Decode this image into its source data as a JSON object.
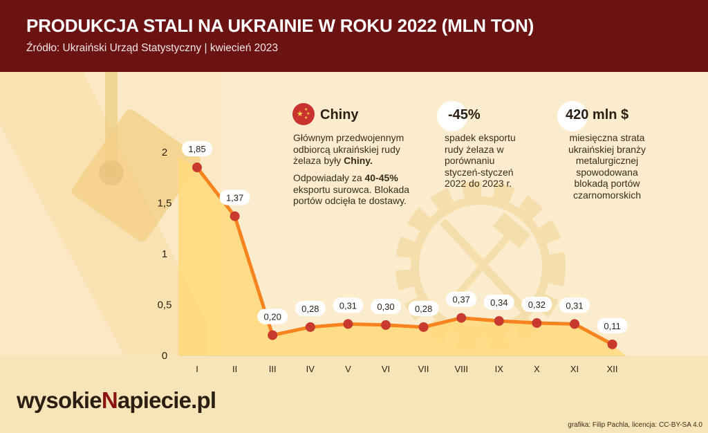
{
  "header": {
    "title": "PRODUKCJA STALI NA UKRAINIE W ROKU 2022 (MLN TON)",
    "subtitle": "Źródło:  Ukraiński Urząd Statystyczny | kwiecień 2023"
  },
  "info": {
    "china_title": "Chiny",
    "china_p1_a": "Głównym przedwojennym odbiorcą ukraińskiej rudy żelaza były ",
    "china_p1_b": "Chiny.",
    "china_p2_a": "Odpowiadały za ",
    "china_p2_b": "40-45%",
    "china_p2_c": " eksportu surowca. Blokada portów odcięła te dostawy.",
    "export_title": "-45%",
    "export_text": "spadek eksportu rudy żelaza w porównaniu styczeń-styczeń 2022 do 2023 r.",
    "loss_title": "420 mln $",
    "loss_text": "miesięczna strata ukraińskiej branży metalurgicznej spowodowana blokadą portów czarnomorskich"
  },
  "logo": {
    "part1": "wysokie",
    "part2": "N",
    "part3": "apiecie.pl"
  },
  "credit": "grafika: Filip Pachla, licencja: CC-BY-SA 4.0",
  "colors": {
    "header": "#6b1313",
    "line": "#f7831f",
    "dot": "#c83a2e",
    "area": "#ffd97a"
  },
  "chart_data": {
    "type": "area",
    "title": "PRODUKCJA STALI NA UKRAINIE W ROKU 2022 (MLN TON)",
    "categories": [
      "I",
      "II",
      "III",
      "IV",
      "V",
      "VI",
      "VII",
      "VIII",
      "IX",
      "X",
      "XI",
      "XII"
    ],
    "values": [
      1.85,
      1.37,
      0.2,
      0.28,
      0.31,
      0.3,
      0.28,
      0.37,
      0.34,
      0.32,
      0.31,
      0.11
    ],
    "labels": [
      "1,85",
      "1,37",
      "0,20",
      "0,28",
      "0,31",
      "0,30",
      "0,28",
      "0,37",
      "0,34",
      "0,32",
      "0,31",
      "0,11"
    ],
    "yticks": [
      "0",
      "0,5",
      "1",
      "1,5",
      "2"
    ],
    "ytick_values": [
      0,
      0.5,
      1,
      1.5,
      2
    ],
    "ylim": [
      0,
      2
    ],
    "xlabel": "",
    "ylabel": "",
    "grid": false,
    "legend": "none"
  }
}
